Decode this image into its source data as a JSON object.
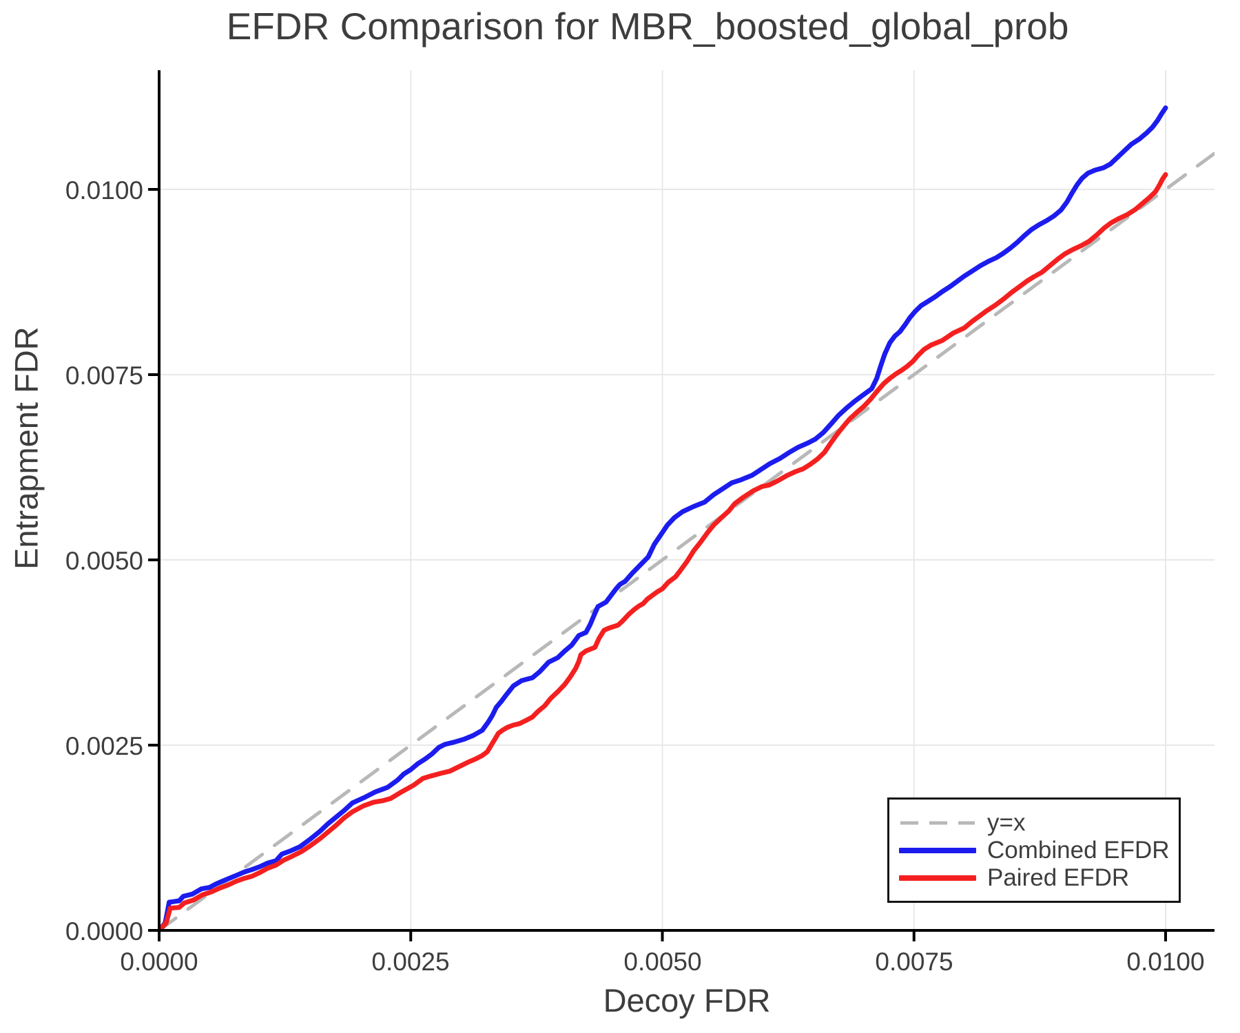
{
  "title": "EFDR Comparison for MBR_boosted_global_prob",
  "axes": {
    "xlabel": "Decoy FDR",
    "ylabel": "Entrapment FDR",
    "x_ticks": [
      "0.0000",
      "0.0025",
      "0.0050",
      "0.0075",
      "0.0100"
    ],
    "y_ticks": [
      "0.0000",
      "0.0025",
      "0.0050",
      "0.0075",
      "0.0100"
    ],
    "x_tick_values": [
      0,
      0.0025,
      0.005,
      0.0075,
      0.01
    ],
    "y_tick_values": [
      0,
      0.0025,
      0.005,
      0.0075,
      0.01
    ]
  },
  "colors": {
    "combined": "#1c1cee",
    "paired": "#f42020",
    "identity": "#b8b8b8",
    "grid": "#e8e8e8",
    "axis": "#000000",
    "text": "#3d3d3d"
  },
  "legend": {
    "position": "lower right",
    "items": [
      {
        "label": "y=x",
        "color": "#b8b8b8",
        "style": "dashed"
      },
      {
        "label": "Combined EFDR",
        "color": "#1c1cee",
        "style": "solid"
      },
      {
        "label": "Paired EFDR",
        "color": "#f42020",
        "style": "solid"
      }
    ]
  },
  "chart_data": {
    "type": "line",
    "title": "EFDR Comparison for MBR_boosted_global_prob",
    "xlabel": "Decoy FDR",
    "ylabel": "Entrapment FDR",
    "xlim": [
      0,
      0.01049
    ],
    "ylim": [
      0,
      0.01161
    ],
    "grid": true,
    "legend_position": "lower right",
    "series": [
      {
        "name": "y=x",
        "color": "#b8b8b8",
        "style": "dashed",
        "x": [
          0,
          0.01049
        ],
        "y": [
          0,
          0.01049
        ]
      },
      {
        "name": "Combined EFDR",
        "color": "#1c1cee",
        "style": "solid",
        "x": [
          0,
          6e-05,
          0.0001,
          0.0002,
          0.00024,
          0.00033,
          0.00042,
          0.0005,
          0.00057,
          0.00064,
          0.00071,
          0.00078,
          0.00085,
          0.00092,
          0.001,
          0.00108,
          0.00116,
          0.00122,
          0.0013,
          0.0014,
          0.0015,
          0.0016,
          0.00167,
          0.00175,
          0.00184,
          0.00192,
          0.00205,
          0.00215,
          0.00227,
          0.00237,
          0.00243,
          0.0025,
          0.00257,
          0.00264,
          0.00271,
          0.00278,
          0.00284,
          0.00293,
          0.00303,
          0.00312,
          0.00321,
          0.00327,
          0.00331,
          0.00335,
          0.0034,
          0.00345,
          0.00352,
          0.0036,
          0.00371,
          0.00378,
          0.00387,
          0.00396,
          0.00403,
          0.0041,
          0.00417,
          0.00424,
          0.00428,
          0.00433,
          0.00436,
          0.00444,
          0.00449,
          0.00454,
          0.00458,
          0.00463,
          0.0047,
          0.00478,
          0.00486,
          0.00492,
          0.00498,
          0.00505,
          0.00512,
          0.0052,
          0.00531,
          0.00542,
          0.00551,
          0.0056,
          0.00569,
          0.00578,
          0.00589,
          0.00598,
          0.00607,
          0.00617,
          0.00626,
          0.00635,
          0.00645,
          0.00652,
          0.0066,
          0.00668,
          0.00675,
          0.00683,
          0.00691,
          0.00699,
          0.00708,
          0.00713,
          0.00717,
          0.00721,
          0.00726,
          0.00731,
          0.00736,
          0.00741,
          0.00746,
          0.00751,
          0.00757,
          0.00764,
          0.00771,
          0.00778,
          0.00786,
          0.00793,
          0.008,
          0.00808,
          0.00816,
          0.00824,
          0.00832,
          0.00839,
          0.00846,
          0.00853,
          0.0086,
          0.00867,
          0.00874,
          0.00882,
          0.00889,
          0.00896,
          0.00902,
          0.00907,
          0.00912,
          0.00917,
          0.00923,
          0.0093,
          0.00938,
          0.00945,
          0.00952,
          0.00959,
          0.00966,
          0.00974,
          0.00981,
          0.00987,
          0.00992,
          0.00996,
          0.00999,
          0.01
        ],
        "y": [
          0,
          0.0001,
          0.00038,
          0.0004,
          0.00046,
          0.00049,
          0.00056,
          0.00058,
          0.00063,
          0.00067,
          0.00071,
          0.00075,
          0.00079,
          0.00082,
          0.00086,
          0.00091,
          0.00094,
          0.00103,
          0.00107,
          0.00113,
          0.00123,
          0.00134,
          0.00143,
          0.00152,
          0.00162,
          0.00172,
          0.0018,
          0.00187,
          0.00193,
          0.00203,
          0.00211,
          0.00217,
          0.00225,
          0.00231,
          0.00238,
          0.00247,
          0.00251,
          0.00254,
          0.00258,
          0.00263,
          0.0027,
          0.00281,
          0.0029,
          0.00301,
          0.00309,
          0.00318,
          0.0033,
          0.00337,
          0.00341,
          0.00349,
          0.00362,
          0.00368,
          0.00377,
          0.00385,
          0.00398,
          0.00402,
          0.00412,
          0.00428,
          0.00437,
          0.00443,
          0.00452,
          0.00461,
          0.00467,
          0.00471,
          0.00482,
          0.00493,
          0.00504,
          0.00521,
          0.00533,
          0.00547,
          0.00557,
          0.00565,
          0.00572,
          0.00578,
          0.00588,
          0.00596,
          0.00604,
          0.00608,
          0.00614,
          0.00622,
          0.0063,
          0.00637,
          0.00645,
          0.00652,
          0.00658,
          0.00663,
          0.00672,
          0.00684,
          0.00695,
          0.00705,
          0.00714,
          0.00722,
          0.00731,
          0.00745,
          0.00762,
          0.00778,
          0.00793,
          0.00802,
          0.00808,
          0.00817,
          0.00827,
          0.00835,
          0.00843,
          0.00849,
          0.00855,
          0.00862,
          0.00869,
          0.00876,
          0.00883,
          0.0089,
          0.00897,
          0.00903,
          0.00908,
          0.00914,
          0.00921,
          0.00929,
          0.00938,
          0.00946,
          0.00952,
          0.00958,
          0.00964,
          0.00972,
          0.00983,
          0.00995,
          0.01006,
          0.01015,
          0.01022,
          0.01026,
          0.01029,
          0.01034,
          0.01043,
          0.01052,
          0.01061,
          0.01068,
          0.01076,
          0.01084,
          0.01093,
          0.01102,
          0.01108,
          0.0111
        ]
      },
      {
        "name": "Paired EFDR",
        "color": "#f42020",
        "style": "solid",
        "x": [
          0,
          7e-05,
          0.00011,
          0.0002,
          0.00025,
          0.00034,
          0.00043,
          0.00052,
          0.0006,
          0.00068,
          0.00076,
          0.00084,
          0.00092,
          0.001,
          0.00108,
          0.00116,
          0.00124,
          0.00132,
          0.00141,
          0.0015,
          0.0016,
          0.00168,
          0.00176,
          0.00184,
          0.00192,
          0.00203,
          0.00213,
          0.00222,
          0.0023,
          0.00241,
          0.00253,
          0.00262,
          0.00269,
          0.0028,
          0.00289,
          0.00298,
          0.00307,
          0.00314,
          0.00321,
          0.00326,
          0.0033,
          0.00334,
          0.00337,
          0.00341,
          0.00346,
          0.00352,
          0.00358,
          0.00364,
          0.00371,
          0.00376,
          0.00383,
          0.00389,
          0.00396,
          0.00403,
          0.00409,
          0.00414,
          0.00417,
          0.00419,
          0.00424,
          0.00433,
          0.00437,
          0.00442,
          0.00447,
          0.00456,
          0.0046,
          0.00467,
          0.00472,
          0.00477,
          0.00481,
          0.00485,
          0.0049,
          0.00495,
          0.005,
          0.00506,
          0.00513,
          0.00517,
          0.00524,
          0.00531,
          0.00538,
          0.00545,
          0.00551,
          0.00558,
          0.00566,
          0.00572,
          0.00581,
          0.0059,
          0.00599,
          0.00606,
          0.00615,
          0.00624,
          0.00632,
          0.0064,
          0.00647,
          0.00654,
          0.00661,
          0.00668,
          0.00675,
          0.00681,
          0.00686,
          0.00694,
          0.007,
          0.00707,
          0.00713,
          0.0072,
          0.00726,
          0.00732,
          0.00738,
          0.00743,
          0.00749,
          0.00754,
          0.0076,
          0.00767,
          0.00778,
          0.00789,
          0.008,
          0.00808,
          0.00814,
          0.00822,
          0.00831,
          0.00839,
          0.00847,
          0.00855,
          0.00862,
          0.00869,
          0.00877,
          0.00885,
          0.00893,
          0.009,
          0.00908,
          0.00916,
          0.00924,
          0.00932,
          0.00939,
          0.00946,
          0.00954,
          0.00962,
          0.0097,
          0.00977,
          0.00984,
          0.0099,
          0.00994,
          0.00997,
          0.01
        ],
        "y": [
          0,
          0.0001,
          0.0003,
          0.00031,
          0.00037,
          0.00041,
          0.00048,
          0.00052,
          0.00057,
          0.00061,
          0.00066,
          0.0007,
          0.00073,
          0.00078,
          0.00084,
          0.00088,
          0.00095,
          0.001,
          0.00106,
          0.00114,
          0.00124,
          0.00133,
          0.00142,
          0.00152,
          0.0016,
          0.00168,
          0.00173,
          0.00175,
          0.00178,
          0.00187,
          0.00196,
          0.00205,
          0.00208,
          0.00212,
          0.00215,
          0.00221,
          0.00227,
          0.00231,
          0.00236,
          0.00241,
          0.0025,
          0.00259,
          0.00266,
          0.0027,
          0.00274,
          0.00277,
          0.00279,
          0.00283,
          0.00288,
          0.00295,
          0.00303,
          0.00313,
          0.00322,
          0.00332,
          0.00343,
          0.00354,
          0.00363,
          0.00372,
          0.00377,
          0.00382,
          0.00394,
          0.00405,
          0.00408,
          0.00412,
          0.00417,
          0.00427,
          0.00433,
          0.00438,
          0.00441,
          0.00447,
          0.00452,
          0.00457,
          0.00461,
          0.0047,
          0.00477,
          0.00484,
          0.00497,
          0.00512,
          0.00524,
          0.00537,
          0.00547,
          0.00556,
          0.00566,
          0.00576,
          0.00585,
          0.00593,
          0.00599,
          0.00601,
          0.00607,
          0.00614,
          0.00619,
          0.00623,
          0.00629,
          0.00636,
          0.00645,
          0.00659,
          0.00672,
          0.00682,
          0.0069,
          0.007,
          0.00707,
          0.00717,
          0.00727,
          0.00738,
          0.00745,
          0.00751,
          0.00756,
          0.00761,
          0.00768,
          0.00776,
          0.00784,
          0.0079,
          0.00796,
          0.00806,
          0.00813,
          0.00822,
          0.00828,
          0.00836,
          0.00844,
          0.00852,
          0.00861,
          0.00869,
          0.00876,
          0.00882,
          0.00888,
          0.00897,
          0.00906,
          0.00913,
          0.00919,
          0.00924,
          0.0093,
          0.00939,
          0.00948,
          0.00955,
          0.00961,
          0.00966,
          0.00973,
          0.00981,
          0.00989,
          0.00997,
          0.01006,
          0.01014,
          0.0102
        ]
      }
    ]
  }
}
